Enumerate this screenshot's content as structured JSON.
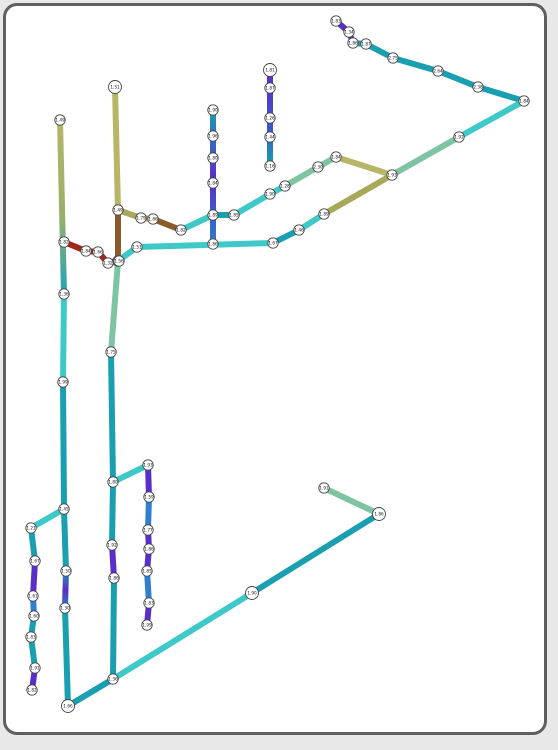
{
  "canvas": {
    "background": "#ffffff",
    "frame_border": "#5f5f5f"
  },
  "colors": {
    "teal": "#1a9fb0",
    "cyan": "#3fc8c8",
    "blue": "#2f7fd0",
    "violet": "#5a2ec8",
    "olive": "#a7a85a",
    "khaki": "#b7b566",
    "brown": "#8a5c2a",
    "red": "#a02818",
    "green": "#7ec4a2"
  },
  "node_labels": {
    "n1": "1.83",
    "n2": "1.34",
    "n3": "1.86",
    "n4": "1.87",
    "n5": "2.75",
    "n6": "2.64",
    "n7": "2.38",
    "n8": "1.84",
    "n9": "1.92",
    "n10": "1.93",
    "n11": "1.84",
    "n12": "2.30",
    "n13": "1.28",
    "n14": "1.90",
    "n15": "1.85",
    "n16": "1.89",
    "n17": "1.82",
    "n18": "1.86",
    "n19": "1.79",
    "n20": "1.49",
    "n21": "1.51",
    "n22": "1.49",
    "n23": "1.90",
    "n24": "1.96",
    "n25": "1.80",
    "n26": "1.84",
    "n27": "1.86",
    "n28": "1.81",
    "n29": "1.87",
    "n30": "1.26",
    "n31": "1.44",
    "n32": "1.16",
    "n33": "1.89",
    "n34": "1.46",
    "n35": "1.67",
    "n36": "1.51",
    "n37": "1.70",
    "n38": "1.32",
    "n39": "1.66",
    "n40": "1.84",
    "n41": "1.82",
    "n42": "1.36",
    "n43": "1.99",
    "n44": "1.45",
    "n45": "1.21",
    "n46": "1.67",
    "n47": "1.61",
    "n48": "1.60",
    "n49": "1.83",
    "n50": "1.91",
    "n51": "1.82",
    "n52": "1.50",
    "n53": "1.30",
    "n54": "1.66",
    "n55": "1.75",
    "n56": "1.80",
    "n57": "1.92",
    "n58": "1.86",
    "n59": "1.36",
    "n60": "1.93",
    "n61": "1.59",
    "n62": "1.77",
    "n63": "1.86",
    "n64": "1.85",
    "n65": "1.83",
    "n66": "1.99",
    "n67": "1.90",
    "n68": "1.86",
    "n69": "1.91",
    "n70": "1.56",
    "n71": "1.69",
    "n72": "1.80",
    "n73": "1.95",
    "n74": "1.47",
    "n75": "1.42"
  }
}
